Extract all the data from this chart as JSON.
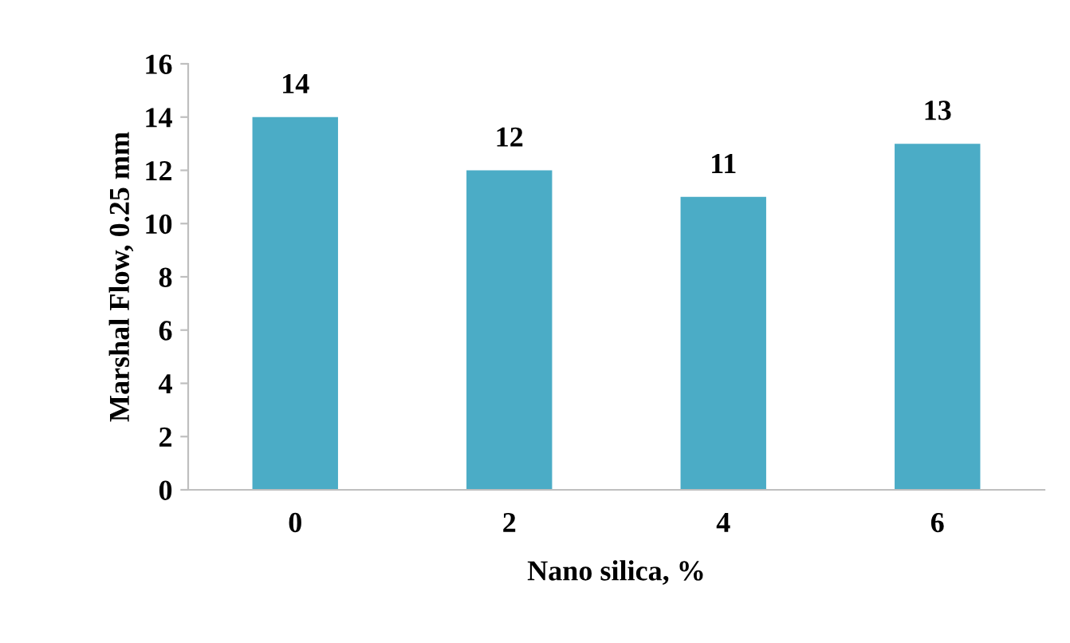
{
  "chart_data": {
    "type": "bar",
    "xlabel": "Nano silica, %",
    "ylabel": "Marshal Flow, 0.25 mm",
    "categories": [
      "0",
      "2",
      "4",
      "6"
    ],
    "values": [
      14,
      12,
      11,
      13
    ],
    "color": "#4bacc6",
    "ylim": [
      0,
      16
    ],
    "yticks": [
      0,
      2,
      4,
      6,
      8,
      10,
      12,
      14,
      16
    ],
    "grid": false,
    "data_labels": true
  }
}
